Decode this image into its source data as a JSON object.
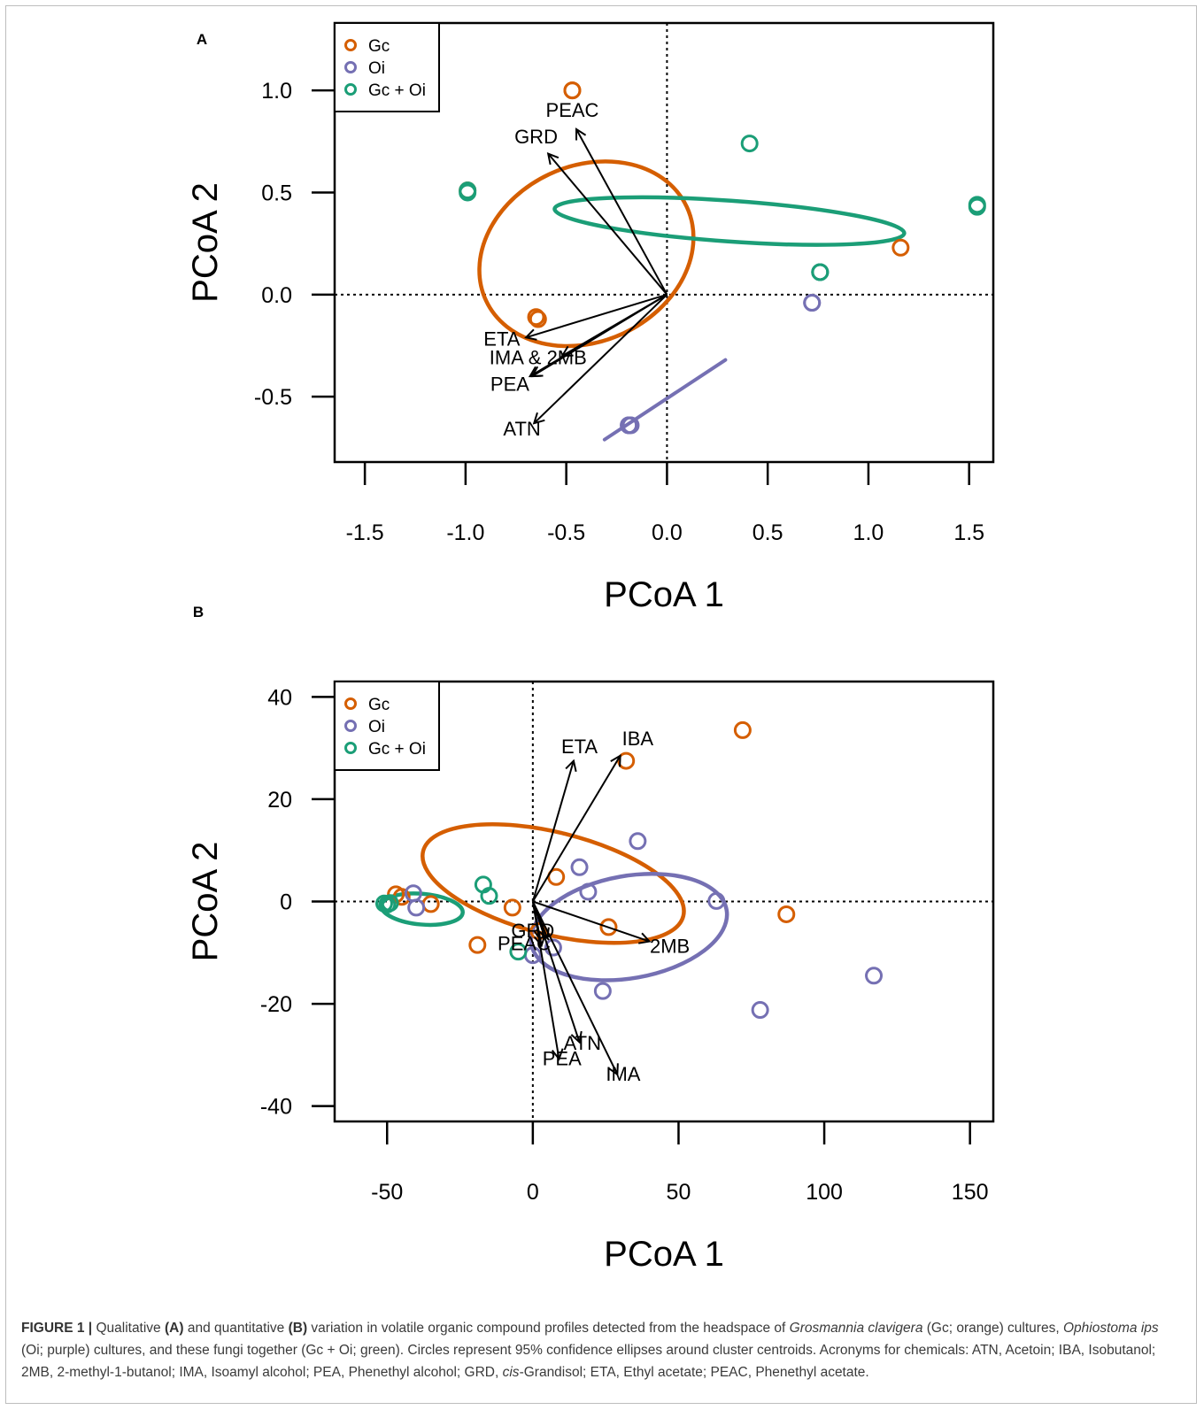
{
  "colors": {
    "Gc": "#D55E00",
    "Oi": "#7570B3",
    "Gc + Oi": "#1B9E77",
    "axis": "#000000"
  },
  "chart_data": [
    {
      "panel": "A",
      "type": "scatter",
      "xlabel": "PCoA 1",
      "ylabel": "PCoA 2",
      "xlim": [
        -1.65,
        1.62
      ],
      "ylim": [
        -0.82,
        1.33
      ],
      "xticks": [
        "-1.5",
        "-1.0",
        "-0.5",
        "0.0",
        "0.5",
        "1.0",
        "1.5"
      ],
      "xtick_values": [
        -1.5,
        -1.0,
        -0.5,
        0.0,
        0.5,
        1.0,
        1.5
      ],
      "yticks": [
        "-0.5",
        "0.0",
        "0.5",
        "1.0"
      ],
      "ytick_values": [
        -0.5,
        0.0,
        0.5,
        1.0
      ],
      "legend": {
        "position": "top-left",
        "entries": [
          "Gc",
          "Oi",
          "Gc + Oi"
        ]
      },
      "series": [
        {
          "name": "Gc",
          "points": [
            [
              -0.47,
              1.0
            ],
            [
              -0.47,
              1.0
            ],
            [
              -0.65,
              -0.11
            ],
            [
              -0.64,
              -0.12
            ],
            [
              1.16,
              0.23
            ],
            [
              -0.99,
              0.51
            ]
          ]
        },
        {
          "name": "Oi",
          "points": [
            [
              0.72,
              -0.04
            ],
            [
              0.72,
              -0.04
            ],
            [
              -0.19,
              -0.64
            ],
            [
              -0.18,
              -0.64
            ],
            [
              -0.19,
              -0.64
            ],
            [
              0.76,
              0.11
            ]
          ]
        },
        {
          "name": "Gc + Oi",
          "points": [
            [
              -0.99,
              0.51
            ],
            [
              -0.99,
              0.5
            ],
            [
              0.41,
              0.74
            ],
            [
              1.54,
              0.44
            ],
            [
              1.54,
              0.43
            ],
            [
              0.76,
              0.11
            ],
            [
              0.76,
              0.11
            ]
          ]
        }
      ],
      "ellipses": [
        {
          "name": "Gc",
          "cx": -0.4,
          "cy": 0.2,
          "rx": 0.55,
          "ry": 0.43,
          "rotation_deg": 25
        },
        {
          "name": "Gc + Oi",
          "cx": 0.31,
          "cy": 0.36,
          "rx": 0.87,
          "ry": 0.1,
          "rotation_deg": -4
        },
        {
          "name": "Oi",
          "line": [
            [
              -0.31,
              -0.71
            ],
            [
              0.29,
              -0.32
            ]
          ]
        }
      ],
      "vectors": [
        {
          "label": "PEAC",
          "to": [
            -0.45,
            0.81
          ],
          "label_at": [
            -0.47,
            0.87
          ]
        },
        {
          "label": "GRD",
          "to": [
            -0.59,
            0.69
          ],
          "label_at": [
            -0.65,
            0.74
          ]
        },
        {
          "label": "ETA",
          "to": [
            -0.7,
            -0.21
          ],
          "label_at": [
            -0.82,
            -0.25
          ]
        },
        {
          "label": "IMA & 2MB",
          "to": [
            -0.52,
            -0.3
          ],
          "label_at": [
            -0.64,
            -0.34
          ]
        },
        {
          "label": "",
          "to": [
            -0.68,
            -0.4
          ],
          "label_at": null
        },
        {
          "label": "PEA",
          "to": [
            -0.67,
            -0.4
          ],
          "label_at": [
            -0.78,
            -0.47
          ]
        },
        {
          "label": "ATN",
          "to": [
            -0.66,
            -0.63
          ],
          "label_at": [
            -0.72,
            -0.69
          ]
        }
      ]
    },
    {
      "panel": "B",
      "type": "scatter",
      "xlabel": "PCoA 1",
      "ylabel": "PCoA 2",
      "xlim": [
        -68,
        158
      ],
      "ylim": [
        -43,
        43
      ],
      "xticks": [
        "-50",
        "0",
        "50",
        "100",
        "150"
      ],
      "xtick_values": [
        -50,
        0,
        50,
        100,
        150
      ],
      "yticks": [
        "-40",
        "-20",
        "0",
        "20",
        "40"
      ],
      "ytick_values": [
        -40,
        -20,
        0,
        20,
        40
      ],
      "legend": {
        "position": "top-left",
        "entries": [
          "Gc",
          "Oi",
          "Gc + Oi"
        ]
      },
      "series": [
        {
          "name": "Gc",
          "points": [
            [
              72,
              33.5
            ],
            [
              32,
              27.5
            ],
            [
              8,
              4.8
            ],
            [
              -47,
              1.4
            ],
            [
              -45,
              0.9
            ],
            [
              -35,
              -0.5
            ],
            [
              -7,
              -1.2
            ],
            [
              26,
              -5
            ],
            [
              87,
              -2.5
            ],
            [
              -19,
              -8.5
            ],
            [
              2,
              -5.8
            ]
          ]
        },
        {
          "name": "Oi",
          "points": [
            [
              36,
              11.8
            ],
            [
              16,
              6.7
            ],
            [
              19,
              1.9
            ],
            [
              -41,
              1.6
            ],
            [
              -40,
              -1.2
            ],
            [
              63,
              0.1
            ],
            [
              7,
              -9
            ],
            [
              0,
              -10.5
            ],
            [
              24,
              -17.5
            ],
            [
              78,
              -21.2
            ],
            [
              117,
              -14.5
            ]
          ]
        },
        {
          "name": "Gc + Oi",
          "points": [
            [
              -17,
              3.3
            ],
            [
              -15,
              1.1
            ],
            [
              -49,
              -0.3
            ],
            [
              -50,
              -0.6
            ],
            [
              -51,
              -0.4
            ],
            [
              -5,
              -9.8
            ]
          ]
        }
      ],
      "ellipses": [
        {
          "name": "Gc",
          "cx": 7,
          "cy": 3.5,
          "rx": 46,
          "ry": 10,
          "rotation_deg": -14
        },
        {
          "name": "Oi",
          "cx": 33,
          "cy": -5,
          "rx": 34,
          "ry": 10,
          "rotation_deg": 10
        },
        {
          "name": "Gc + Oi",
          "cx": -38,
          "cy": -1.5,
          "rx": 14,
          "ry": 3,
          "rotation_deg": -5
        }
      ],
      "vectors": [
        {
          "label": "ETA",
          "to": [
            14,
            27.5
          ],
          "label_at": [
            16,
            29
          ]
        },
        {
          "label": "IBA",
          "to": [
            30,
            28.5
          ],
          "label_at": [
            36,
            30.5
          ]
        },
        {
          "label": "2MB",
          "to": [
            40,
            -7.8
          ],
          "label_at": [
            47,
            -10
          ]
        },
        {
          "label": "GRD",
          "to": [
            5,
            -7.2
          ],
          "label_at": [
            0,
            -7
          ]
        },
        {
          "label": "PEAC",
          "to": [
            3,
            -8.6
          ],
          "label_at": [
            -3,
            -9.5
          ]
        },
        {
          "label": "ATN",
          "to": [
            16,
            -27.5
          ],
          "label_at": [
            17,
            -29
          ]
        },
        {
          "label": "PEA",
          "to": [
            9,
            -30.8
          ],
          "label_at": [
            10,
            -32
          ]
        },
        {
          "label": "IMA",
          "to": [
            29,
            -33.8
          ],
          "label_at": [
            31,
            -35
          ]
        }
      ]
    }
  ],
  "caption": {
    "figure_label": "FIGURE 1 |",
    "t1": " Qualitative ",
    "A": "(A)",
    "t2": " and quantitative ",
    "B": "(B)",
    "t3": " variation in volatile organic compound profiles detected from the headspace of ",
    "gc_species": "Grosmannia clavigera",
    "t4": " (Gc; orange) cultures, ",
    "oi_species": "Ophiostoma ips",
    "t5": " (Oi; purple) cultures, and these fungi together (Gc + Oi; green). Circles represent 95% confidence ellipses around cluster centroids. Acronyms for chemicals: ATN, Acetoin; IBA, Isobutanol; 2MB, 2-methyl-1-butanol; IMA, Isoamyl alcohol; PEA, Phenethyl alcohol; GRD, ",
    "cis": "cis",
    "t6": "-Grandisol; ETA, Ethyl acetate; PEAC, Phenethyl acetate."
  }
}
